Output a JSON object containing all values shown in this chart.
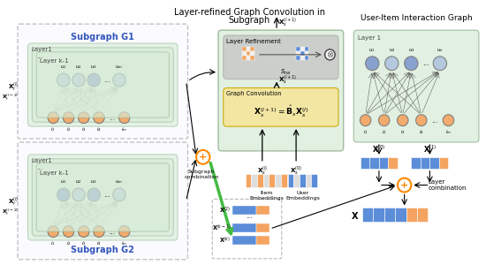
{
  "title_line1": "Layer-refined Graph Convolution in",
  "title_line2": "Subgraph",
  "bg_color": "#ffffff",
  "subgraph_g1_label": "Subgraph G1",
  "subgraph_g2_label": "Subgraph G2",
  "user_item_label": "User-Item Interaction Graph",
  "layer1_label": "Layer1",
  "layerk1_label": "Layer k-1",
  "layer_refinement_label": "Layer Refinement",
  "graph_conv_label": "Graph Convolution",
  "subgraph_combination_label": "Subgraph\ncombination",
  "layer_combination_label": "Layer\ncombination",
  "item_embeddings_label": "Item\nEmbeddings",
  "user_embeddings_label": "User\nEmbeddings",
  "node_blue_color": "#8099cc",
  "node_orange_color": "#f4a460",
  "node_light_blue": "#b0c4de",
  "graph_bg_green": "#d8ecd8",
  "layer_ref_bg": "#d0d0d0",
  "graph_conv_bg": "#f5e6a0",
  "dashed_box_color": "#888888",
  "green_arrow_color": "#4aaa44",
  "embed_blue": "#5b8dd9",
  "embed_orange": "#f4a460",
  "x_bar_blue": "#5b8dd9",
  "x_bar_orange": "#f4a460"
}
